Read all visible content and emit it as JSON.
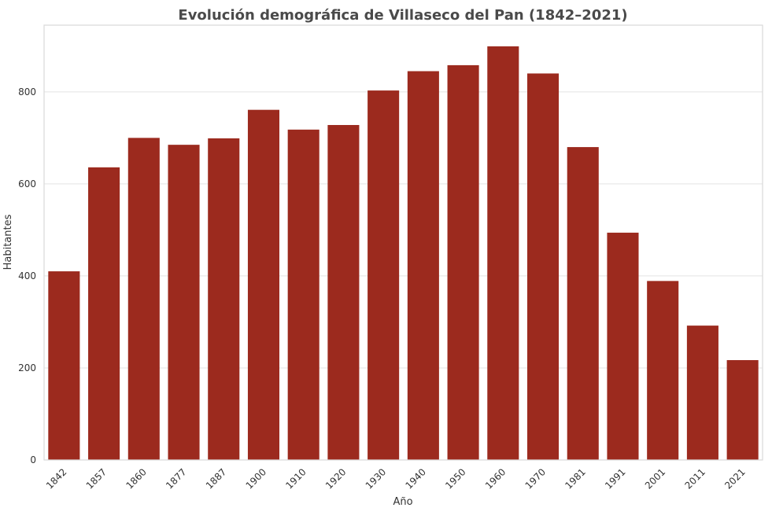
{
  "chart_data": {
    "type": "bar",
    "title": "Evolución demográfica de Villaseco del Pan (1842–2021)",
    "xlabel": "Año",
    "ylabel": "Habitantes",
    "categories": [
      "1842",
      "1857",
      "1860",
      "1877",
      "1887",
      "1900",
      "1910",
      "1920",
      "1930",
      "1940",
      "1950",
      "1960",
      "1970",
      "1981",
      "1991",
      "2001",
      "2011",
      "2021"
    ],
    "values": [
      410,
      636,
      700,
      685,
      699,
      761,
      718,
      728,
      803,
      845,
      858,
      899,
      840,
      680,
      494,
      389,
      292,
      217
    ],
    "ylim": [
      0,
      945
    ],
    "yticks": [
      0,
      200,
      400,
      600,
      800
    ],
    "bar_color": "#9c2a1e",
    "grid": true,
    "legend": "none"
  }
}
